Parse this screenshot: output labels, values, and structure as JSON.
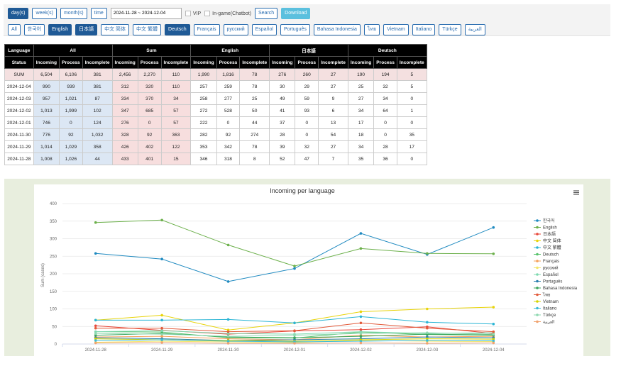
{
  "toolbar": {
    "periods": [
      {
        "label": "day(s)",
        "active": true
      },
      {
        "label": "week(s)",
        "active": false
      },
      {
        "label": "month(s)",
        "active": false
      },
      {
        "label": "time",
        "active": false
      }
    ],
    "date_range": "2024-11-28 ~ 2024-12-04",
    "checkboxes": [
      "VIP",
      "In-game(Chatbot)"
    ],
    "search": "Search",
    "download": "Download"
  },
  "languages": [
    {
      "label": "All",
      "active": false
    },
    {
      "label": "한국어",
      "active": false
    },
    {
      "label": "English",
      "active": true
    },
    {
      "label": "日本語",
      "active": true
    },
    {
      "label": "中文 简体",
      "active": false
    },
    {
      "label": "中文 繁體",
      "active": false
    },
    {
      "label": "Deutsch",
      "active": true
    },
    {
      "label": "Français",
      "active": false
    },
    {
      "label": "русский",
      "active": false
    },
    {
      "label": "Español",
      "active": false
    },
    {
      "label": "Português",
      "active": false
    },
    {
      "label": "Bahasa Indonesia",
      "active": false
    },
    {
      "label": "ไทย",
      "active": false
    },
    {
      "label": "Vietnam",
      "active": false
    },
    {
      "label": "Italiano",
      "active": false
    },
    {
      "label": "Türkçe",
      "active": false
    },
    {
      "label": "العربية",
      "active": false
    }
  ],
  "table": {
    "group_headers": [
      "Language",
      "All",
      "Sum",
      "English",
      "日本語",
      "Deutsch"
    ],
    "sub_headers": [
      "Status",
      "Incoming",
      "Process",
      "Incomplete",
      "Incoming",
      "Process",
      "Incomplete",
      "Incoming",
      "Process",
      "Incomplete",
      "Incoming",
      "Process",
      "Incomplete",
      "Incoming",
      "Process",
      "Incomplete"
    ],
    "rows": [
      [
        "SUM",
        "6,504",
        "6,106",
        "381",
        "2,456",
        "2,270",
        "110",
        "1,990",
        "1,816",
        "78",
        "276",
        "260",
        "27",
        "190",
        "194",
        "5"
      ],
      [
        "2024-12-04",
        "990",
        "939",
        "381",
        "312",
        "320",
        "110",
        "257",
        "259",
        "78",
        "30",
        "29",
        "27",
        "25",
        "32",
        "5"
      ],
      [
        "2024-12-03",
        "957",
        "1,021",
        "87",
        "334",
        "370",
        "34",
        "258",
        "277",
        "25",
        "49",
        "59",
        "9",
        "27",
        "34",
        "0"
      ],
      [
        "2024-12-02",
        "1,013",
        "1,999",
        "102",
        "347",
        "685",
        "57",
        "272",
        "528",
        "50",
        "41",
        "93",
        "6",
        "34",
        "64",
        "1"
      ],
      [
        "2024-12-01",
        "746",
        "0",
        "124",
        "276",
        "0",
        "57",
        "222",
        "0",
        "44",
        "37",
        "0",
        "13",
        "17",
        "0",
        "0"
      ],
      [
        "2024-11-30",
        "776",
        "92",
        "1,032",
        "328",
        "92",
        "363",
        "282",
        "92",
        "274",
        "28",
        "0",
        "54",
        "18",
        "0",
        "35"
      ],
      [
        "2024-11-29",
        "1,014",
        "1,029",
        "358",
        "426",
        "402",
        "122",
        "353",
        "342",
        "78",
        "39",
        "32",
        "27",
        "34",
        "28",
        "17"
      ],
      [
        "2024-11-28",
        "1,008",
        "1,026",
        "44",
        "433",
        "401",
        "15",
        "346",
        "318",
        "8",
        "52",
        "47",
        "7",
        "35",
        "36",
        "0"
      ]
    ]
  },
  "chart_data": {
    "type": "line",
    "title": "Incoming per language",
    "y_label": "Sum (cases)",
    "categories": [
      "2024-11-28",
      "2024-11-29",
      "2024-11-30",
      "2024-12-01",
      "2024-12-02",
      "2024-12-03",
      "2024-12-04"
    ],
    "ylim": [
      0,
      400
    ],
    "yticks": [
      0,
      50,
      100,
      150,
      200,
      250,
      300,
      350,
      400
    ],
    "grid": true,
    "legend": "right",
    "series": [
      {
        "name": "한국어",
        "color": "#1f8ac0",
        "values": [
          258,
          242,
          178,
          215,
          315,
          255,
          332
        ]
      },
      {
        "name": "English",
        "color": "#6cb04b",
        "values": [
          346,
          353,
          282,
          222,
          272,
          258,
          257
        ]
      },
      {
        "name": "日本語",
        "color": "#e8473a",
        "values": [
          52,
          39,
          28,
          37,
          41,
          49,
          30
        ]
      },
      {
        "name": "中文 简体",
        "color": "#e8d40c",
        "values": [
          68,
          82,
          40,
          60,
          92,
          100,
          105
        ]
      },
      {
        "name": "中文 繁體",
        "color": "#2bb5d5",
        "values": [
          68,
          68,
          70,
          60,
          78,
          62,
          57
        ]
      },
      {
        "name": "Deutsch",
        "color": "#56c26b",
        "values": [
          35,
          34,
          18,
          17,
          34,
          27,
          25
        ]
      },
      {
        "name": "Français",
        "color": "#f5a05a",
        "values": [
          20,
          22,
          15,
          12,
          25,
          20,
          22
        ]
      },
      {
        "name": "русский",
        "color": "#f2e66b",
        "values": [
          5,
          8,
          6,
          4,
          10,
          8,
          7
        ]
      },
      {
        "name": "Español",
        "color": "#7fd9b0",
        "values": [
          35,
          38,
          30,
          28,
          35,
          30,
          32
        ]
      },
      {
        "name": "Português",
        "color": "#2a7fae",
        "values": [
          18,
          15,
          10,
          12,
          15,
          20,
          18
        ]
      },
      {
        "name": "Bahasa Indonesia",
        "color": "#3aa55b",
        "values": [
          25,
          30,
          20,
          18,
          22,
          28,
          26
        ]
      },
      {
        "name": "ไทย",
        "color": "#e25a3a",
        "values": [
          45,
          45,
          35,
          38,
          60,
          45,
          35
        ]
      },
      {
        "name": "Vietnam",
        "color": "#d4d400",
        "values": [
          15,
          12,
          10,
          8,
          12,
          15,
          14
        ]
      },
      {
        "name": "Italiano",
        "color": "#3cbbd8",
        "values": [
          10,
          12,
          8,
          6,
          8,
          10,
          9
        ]
      },
      {
        "name": "Türkçe",
        "color": "#8ed8b0",
        "values": [
          30,
          28,
          22,
          25,
          30,
          32,
          28
        ]
      },
      {
        "name": "العربية",
        "color": "#f0a36f",
        "values": [
          3,
          4,
          2,
          2,
          3,
          2,
          3
        ]
      }
    ]
  }
}
